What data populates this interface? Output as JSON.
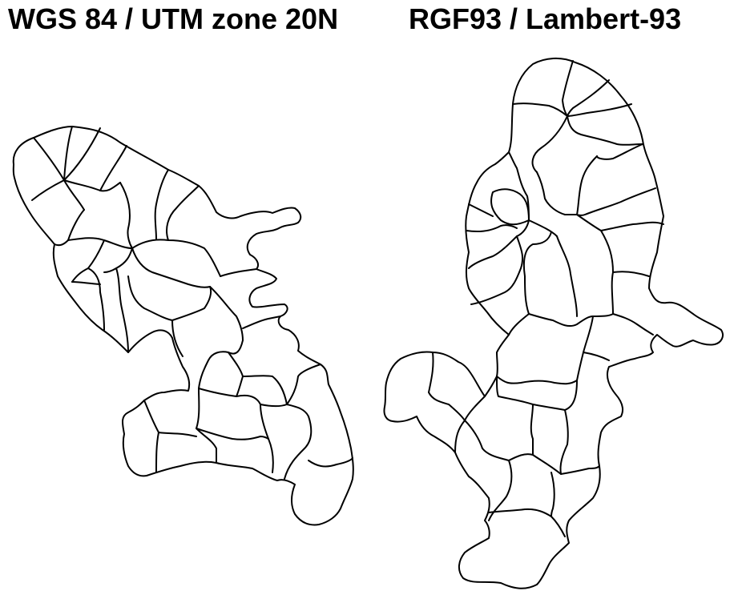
{
  "panels": [
    {
      "title": "WGS 84 / UTM zone 20N"
    },
    {
      "title": "RGF93 / Lambert-93"
    }
  ]
}
